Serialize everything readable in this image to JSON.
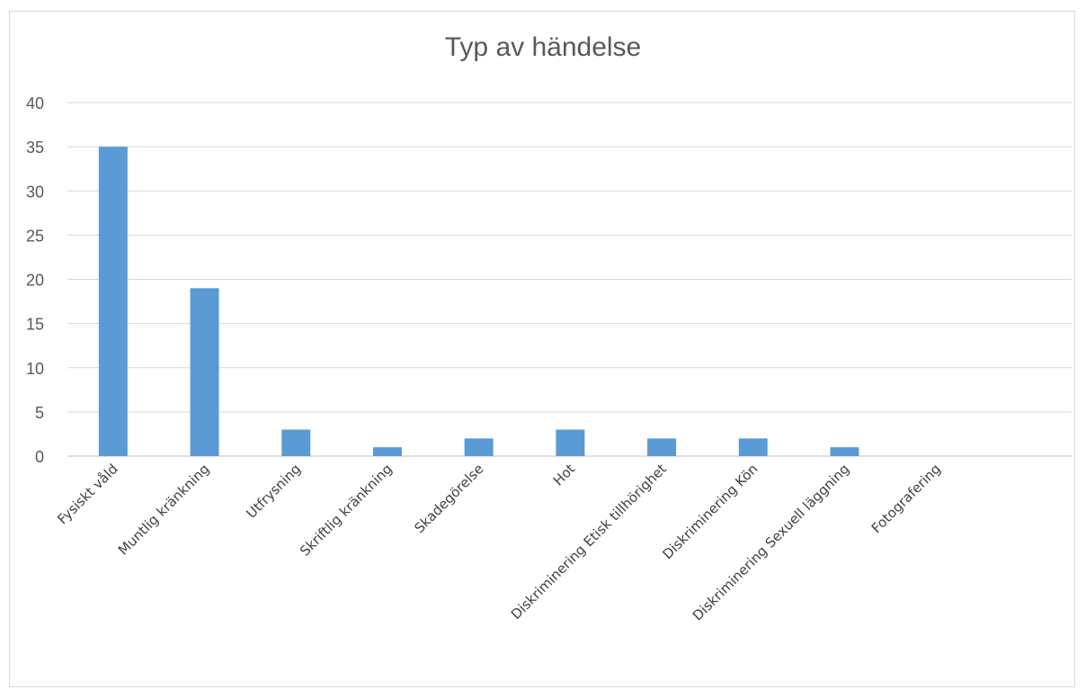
{
  "chart_data": {
    "type": "bar",
    "title": "Typ av händelse",
    "xlabel": "",
    "ylabel": "",
    "categories": [
      "Fysiskt våld",
      "Muntlig kränkning",
      "Utfrysning",
      "Skriftlig kränkning",
      "Skadegörelse",
      "Hot",
      "Diskriminering Etisk tillhörighet",
      "Diskriminering Kön",
      "Diskriminering Sexuell läggning",
      "Fotografering"
    ],
    "values": [
      35,
      19,
      3,
      1,
      2,
      3,
      2,
      2,
      1,
      0
    ],
    "ylim": [
      0,
      40
    ],
    "yticks": [
      0,
      5,
      10,
      15,
      20,
      25,
      30,
      35,
      40
    ],
    "grid": true,
    "legend": "none",
    "colors": {
      "bar": "#5b9bd5",
      "grid": "#d9d9d9",
      "axis": "#bfbfbf",
      "text": "#595959"
    }
  }
}
